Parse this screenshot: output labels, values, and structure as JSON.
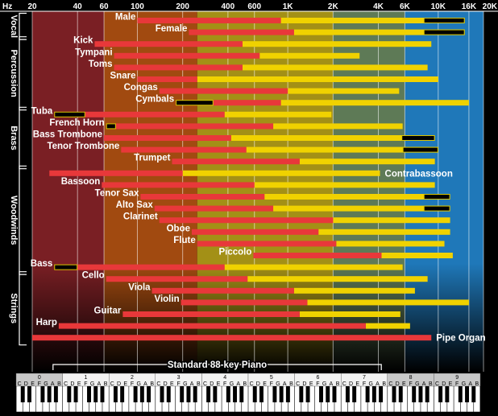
{
  "chart_data": {
    "type": "bar",
    "xscale": "log",
    "xlim": [
      20,
      20000
    ],
    "axis_unit": "Hz",
    "ticks": [
      {
        "v": 20,
        "t": "20"
      },
      {
        "v": 40,
        "t": "40"
      },
      {
        "v": 60,
        "t": "60"
      },
      {
        "v": 100,
        "t": "100"
      },
      {
        "v": 200,
        "t": "200"
      },
      {
        "v": 400,
        "t": "400"
      },
      {
        "v": 600,
        "t": "600"
      },
      {
        "v": 1000,
        "t": "1K"
      },
      {
        "v": 2000,
        "t": "2K"
      },
      {
        "v": 4000,
        "t": "4K"
      },
      {
        "v": 6000,
        "t": "6K"
      },
      {
        "v": 10000,
        "t": "10K"
      },
      {
        "v": 16000,
        "t": "16K"
      },
      {
        "v": 20000,
        "t": "20K"
      }
    ],
    "bands": [
      {
        "from": 20,
        "to": 60,
        "color": "#7a1f24"
      },
      {
        "from": 60,
        "to": 250,
        "color": "#a14a10"
      },
      {
        "from": 250,
        "to": 2000,
        "color": "#a39016"
      },
      {
        "from": 2000,
        "to": 6000,
        "color": "#5e7a56"
      },
      {
        "from": 6000,
        "to": 20000,
        "color": "#1f78b9"
      }
    ],
    "colors": {
      "fundamental": "#e8383a",
      "harmonics": "#f0d200",
      "extended": "#000000"
    },
    "groups": [
      {
        "name": "Vocal",
        "rows": [
          0,
          1
        ]
      },
      {
        "name": "Percussion",
        "rows": [
          2,
          7
        ]
      },
      {
        "name": "Brass",
        "rows": [
          8,
          12
        ]
      },
      {
        "name": "Woodwinds",
        "rows": [
          13,
          21
        ]
      },
      {
        "name": "Strings",
        "rows": [
          22,
          27
        ]
      }
    ],
    "instruments": [
      {
        "name": "Male",
        "fund": [
          100,
          900
        ],
        "harm": [
          900,
          15000
        ],
        "ext": [
          8000,
          15000
        ],
        "label": "left"
      },
      {
        "name": "Female",
        "fund": [
          220,
          1100
        ],
        "harm": [
          1100,
          15000
        ],
        "ext": [
          8000,
          15000
        ],
        "label": "left"
      },
      {
        "name": "Kick",
        "fund": [
          52,
          500
        ],
        "harm": [
          500,
          9000
        ],
        "label": "left"
      },
      {
        "name": "Tympani",
        "fund": [
          70,
          650
        ],
        "harm": [
          650,
          3000
        ],
        "label": "left"
      },
      {
        "name": "Toms",
        "fund": [
          70,
          500
        ],
        "harm": [
          500,
          8500
        ],
        "label": "left"
      },
      {
        "name": "Snare",
        "fund": [
          100,
          250
        ],
        "harm": [
          250,
          10000
        ],
        "label": "left"
      },
      {
        "name": "Congas",
        "fund": [
          140,
          1000
        ],
        "harm": [
          1000,
          5500
        ],
        "label": "left"
      },
      {
        "name": "Cymbals",
        "fund": [
          320,
          900
        ],
        "harm": [
          900,
          16000
        ],
        "ext": [
          180,
          320
        ],
        "label": "left"
      },
      {
        "name": "Tuba",
        "fund": [
          45,
          380
        ],
        "harm": [
          380,
          1950
        ],
        "ext": [
          28,
          45
        ],
        "label": "left"
      },
      {
        "name": "French Horn",
        "fund": [
          72,
          800
        ],
        "harm": [
          800,
          5800
        ],
        "ext": [
          62,
          72
        ],
        "label": "left"
      },
      {
        "name": "Bass Trombone",
        "fund": [
          60,
          420
        ],
        "harm": [
          420,
          9500
        ],
        "ext": [
          5700,
          9500
        ],
        "label": "left"
      },
      {
        "name": "Tenor Trombone",
        "fund": [
          78,
          530
        ],
        "harm": [
          530,
          10000
        ],
        "ext": [
          5800,
          10000
        ],
        "label": "left"
      },
      {
        "name": "Trumpet",
        "fund": [
          170,
          1200
        ],
        "harm": [
          1200,
          9500
        ],
        "label": "left"
      },
      {
        "name": "Contrabassoon",
        "fund": [
          26,
          200
        ],
        "harm": [
          200,
          4100
        ],
        "label": "right"
      },
      {
        "name": "Bassoon",
        "fund": [
          58,
          600
        ],
        "harm": [
          600,
          9500
        ],
        "label": "left"
      },
      {
        "name": "Tenor Sax",
        "fund": [
          105,
          700
        ],
        "harm": [
          700,
          12000
        ],
        "ext": [
          8000,
          12000
        ],
        "label": "left"
      },
      {
        "name": "Alto Sax",
        "fund": [
          130,
          800
        ],
        "harm": [
          800,
          12000
        ],
        "ext": [
          8000,
          12000
        ],
        "label": "left"
      },
      {
        "name": "Clarinet",
        "fund": [
          140,
          2000
        ],
        "harm": [
          2000,
          12000
        ],
        "label": "left"
      },
      {
        "name": "Oboe",
        "fund": [
          230,
          1600
        ],
        "harm": [
          1600,
          12000
        ],
        "label": "left"
      },
      {
        "name": "Flute",
        "fund": [
          250,
          2100
        ],
        "harm": [
          2100,
          11000
        ],
        "label": "left"
      },
      {
        "name": "Piccolo",
        "fund": [
          590,
          4200
        ],
        "harm": [
          4200,
          12500
        ],
        "label": "left"
      },
      {
        "name": "Bass",
        "fund": [
          40,
          380
        ],
        "harm": [
          380,
          5800
        ],
        "ext": [
          28,
          40
        ],
        "label": "left"
      },
      {
        "name": "Cello",
        "fund": [
          62,
          540
        ],
        "harm": [
          540,
          8500
        ],
        "label": "left"
      },
      {
        "name": "Viola",
        "fund": [
          125,
          1100
        ],
        "harm": [
          1100,
          7000
        ],
        "label": "left"
      },
      {
        "name": "Violin",
        "fund": [
          195,
          1350
        ],
        "harm": [
          1350,
          16000
        ],
        "label": "left"
      },
      {
        "name": "Guitar",
        "fund": [
          80,
          1200
        ],
        "harm": [
          1200,
          5600
        ],
        "label": "left"
      },
      {
        "name": "Harp",
        "fund": [
          30,
          3300
        ],
        "harm": [
          3300,
          6500
        ],
        "label": "left"
      },
      {
        "name": "Pipe Organ",
        "fund": [
          20,
          9000
        ],
        "label": "right"
      }
    ],
    "piano": {
      "label": "Standard 88-key Piano",
      "range": [
        27.5,
        4186
      ],
      "octaves": [
        "0",
        "1",
        "2",
        "3",
        "4",
        "5",
        "6",
        "7",
        "8",
        "9"
      ],
      "notes": [
        "C",
        "D",
        "E",
        "F",
        "G",
        "A",
        "B"
      ]
    }
  }
}
